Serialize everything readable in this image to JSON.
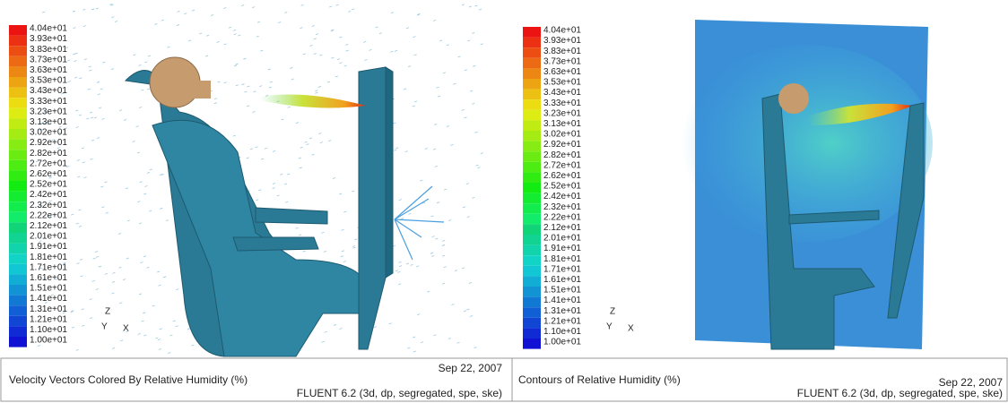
{
  "panels": [
    {
      "legend_labels": [
        "4.04e+01",
        "3.93e+01",
        "3.83e+01",
        "3.73e+01",
        "3.63e+01",
        "3.53e+01",
        "3.43e+01",
        "3.33e+01",
        "3.23e+01",
        "3.13e+01",
        "3.02e+01",
        "2.92e+01",
        "2.82e+01",
        "2.72e+01",
        "2.62e+01",
        "2.52e+01",
        "2.42e+01",
        "2.32e+01",
        "2.22e+01",
        "2.12e+01",
        "2.01e+01",
        "1.91e+01",
        "1.81e+01",
        "1.71e+01",
        "1.61e+01",
        "1.51e+01",
        "1.41e+01",
        "1.31e+01",
        "1.21e+01",
        "1.10e+01",
        "1.00e+01"
      ],
      "axes": {
        "z": "Z",
        "y": "Y",
        "x": "X"
      },
      "caption": "Velocity Vectors Colored By Relative Humidity (%)",
      "date": "Sep 22, 2007",
      "solver": "FLUENT 6.2 (3d, dp, segregated, spe, ske)"
    },
    {
      "legend_labels": [
        "4.04e+01",
        "3.93e+01",
        "3.83e+01",
        "3.73e+01",
        "3.63e+01",
        "3.53e+01",
        "3.43e+01",
        "3.33e+01",
        "3.23e+01",
        "3.13e+01",
        "3.02e+01",
        "2.92e+01",
        "2.82e+01",
        "2.72e+01",
        "2.62e+01",
        "2.52e+01",
        "2.42e+01",
        "2.32e+01",
        "2.22e+01",
        "2.12e+01",
        "2.01e+01",
        "1.91e+01",
        "1.81e+01",
        "1.71e+01",
        "1.61e+01",
        "1.51e+01",
        "1.41e+01",
        "1.31e+01",
        "1.21e+01",
        "1.10e+01",
        "1.00e+01"
      ],
      "axes": {
        "z": "Z",
        "y": "Y",
        "x": "X"
      },
      "caption": "Contours of Relative Humidity (%)",
      "date": "Sep 22, 2007",
      "solver": "FLUENT 6.2 (3d, dp, segregated, spe, ske)"
    }
  ]
}
